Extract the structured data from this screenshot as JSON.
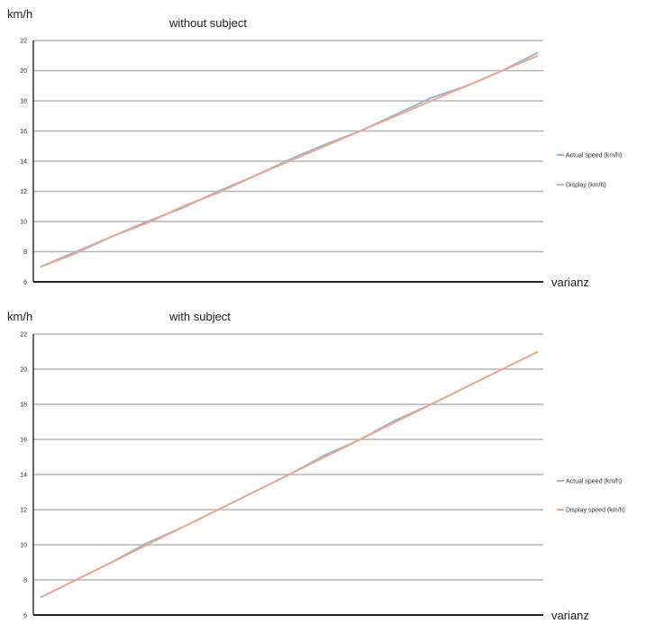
{
  "chart_data": [
    {
      "type": "line",
      "title": "without subject",
      "ylabel": "km/h",
      "xlabel": "varianz",
      "ylim": [
        6,
        22
      ],
      "yticks": [
        "6",
        "8",
        "10",
        "12",
        "14",
        "16",
        "18",
        "20",
        "22"
      ],
      "grid": true,
      "legend": "right",
      "x": [
        0,
        1,
        2,
        3,
        4,
        5,
        6,
        7,
        8,
        9,
        10,
        11,
        12,
        13,
        14
      ],
      "series": [
        {
          "name": "Actual speed (km/h)",
          "color": "#8fb8de",
          "values": [
            7.0,
            8.0,
            9.0,
            10.0,
            10.9,
            12.0,
            13.0,
            14.1,
            15.1,
            16.0,
            17.1,
            18.2,
            19.0,
            20.0,
            21.2
          ]
        },
        {
          "name": "Display (km/h)",
          "color": "#f4a58a",
          "values": [
            7.0,
            7.9,
            9.0,
            9.9,
            11.0,
            11.9,
            13.0,
            14.0,
            15.0,
            16.0,
            17.0,
            18.0,
            19.0,
            20.0,
            21.0
          ]
        }
      ]
    },
    {
      "type": "line",
      "title": "with subject",
      "ylabel": "km/h",
      "xlabel": "varianz",
      "ylim": [
        6,
        22
      ],
      "yticks": [
        "6",
        "8",
        "10",
        "12",
        "14",
        "16",
        "18",
        "20",
        "22"
      ],
      "grid": true,
      "legend": "right",
      "x": [
        0,
        1,
        2,
        3,
        4,
        5,
        6,
        7,
        8,
        9,
        10,
        11,
        12,
        13,
        14
      ],
      "series": [
        {
          "name": "Actual speed (km/h)",
          "color": "#8fb8de",
          "values": [
            7.0,
            8.0,
            9.0,
            10.1,
            11.0,
            12.0,
            13.0,
            14.0,
            15.1,
            16.0,
            17.1,
            18.0,
            19.0,
            20.0,
            21.0
          ]
        },
        {
          "name": "Display speed (km/h)",
          "color": "#f4a58a",
          "values": [
            7.0,
            8.0,
            9.0,
            10.0,
            11.0,
            12.0,
            13.0,
            14.0,
            15.0,
            16.0,
            17.0,
            18.0,
            19.0,
            20.0,
            21.0
          ]
        }
      ]
    }
  ]
}
